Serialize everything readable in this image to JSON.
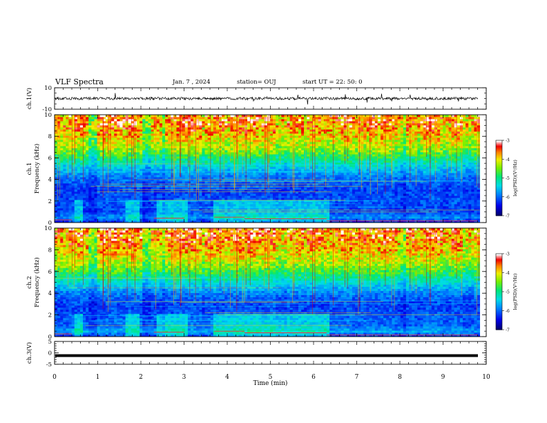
{
  "header": {
    "title": "VLF Spectra",
    "date": "Jan. 7 , 2024",
    "station": "station= OUJ",
    "start": "start UT =  22: 50: 0"
  },
  "chart_data": [
    {
      "type": "line",
      "panel": "ch1-waveform",
      "ylabel": "ch.1(V)",
      "yticks": [
        "10",
        "-10"
      ],
      "ylim": [
        -10,
        10
      ],
      "xlim": [
        0,
        10
      ],
      "mean_value": 0,
      "noise_amplitude": 2.5,
      "color": "#000000"
    },
    {
      "type": "heatmap",
      "panel": "ch1-spectrogram",
      "ylabel": "ch.1\nFrequency (kHz)",
      "yticks": [
        "0",
        "2",
        "4",
        "6",
        "8",
        "10"
      ],
      "ylim": [
        0,
        10
      ],
      "xlim": [
        0,
        9.85
      ],
      "colorbar": {
        "label": "log(PSD)(V²/Hz)",
        "ticks": [
          "-3",
          "-4",
          "-5",
          "-6",
          "-7"
        ],
        "range": [
          -7,
          -3
        ],
        "colors": [
          "#000080",
          "#0000ff",
          "#00c8ff",
          "#00ff80",
          "#80ff00",
          "#ffff00",
          "#ff8000",
          "#ff0000",
          "#ffc8c8",
          "#ffffff"
        ]
      },
      "level_by_freq_khz": [
        [
          0.0,
          -6.6
        ],
        [
          0.5,
          -6.0
        ],
        [
          1.0,
          -6.4
        ],
        [
          2.0,
          -6.3
        ],
        [
          3.0,
          -6.4
        ],
        [
          4.0,
          -6.2
        ],
        [
          5.0,
          -5.8
        ],
        [
          6.0,
          -5.3
        ],
        [
          7.0,
          -4.8
        ],
        [
          8.0,
          -4.6
        ],
        [
          9.0,
          -4.4
        ],
        [
          10.0,
          -4.5
        ]
      ]
    },
    {
      "type": "heatmap",
      "panel": "ch2-spectrogram",
      "ylabel": "ch.2\nFrequency (kHz)",
      "yticks": [
        "0",
        "2",
        "4",
        "6",
        "8",
        "10"
      ],
      "ylim": [
        0,
        10
      ],
      "xlim": [
        0,
        9.85
      ],
      "colorbar": {
        "label": "log(PSD)(V²/Hz)",
        "ticks": [
          "-3",
          "-4",
          "-5",
          "-6",
          "-7"
        ],
        "range": [
          -7,
          -3
        ]
      },
      "level_by_freq_khz": [
        [
          0.0,
          -6.5
        ],
        [
          0.5,
          -5.9
        ],
        [
          1.0,
          -6.2
        ],
        [
          2.0,
          -6.3
        ],
        [
          3.0,
          -6.4
        ],
        [
          4.0,
          -6.1
        ],
        [
          5.0,
          -5.6
        ],
        [
          6.0,
          -5.1
        ],
        [
          7.0,
          -4.7
        ],
        [
          8.0,
          -4.5
        ],
        [
          9.0,
          -4.4
        ],
        [
          10.0,
          -4.4
        ]
      ]
    },
    {
      "type": "line",
      "panel": "ch3-waveform",
      "ylabel": "ch.3(V)",
      "yticks": [
        "5",
        "0",
        "-5"
      ],
      "ylim": [
        -5,
        5
      ],
      "xlim": [
        0,
        9.85
      ],
      "mean_value": -1.2,
      "color": "#000000"
    }
  ],
  "xaxis": {
    "label": "Time (min)",
    "ticks": [
      "0",
      "1",
      "2",
      "3",
      "4",
      "5",
      "6",
      "7",
      "8",
      "9",
      "10"
    ]
  }
}
